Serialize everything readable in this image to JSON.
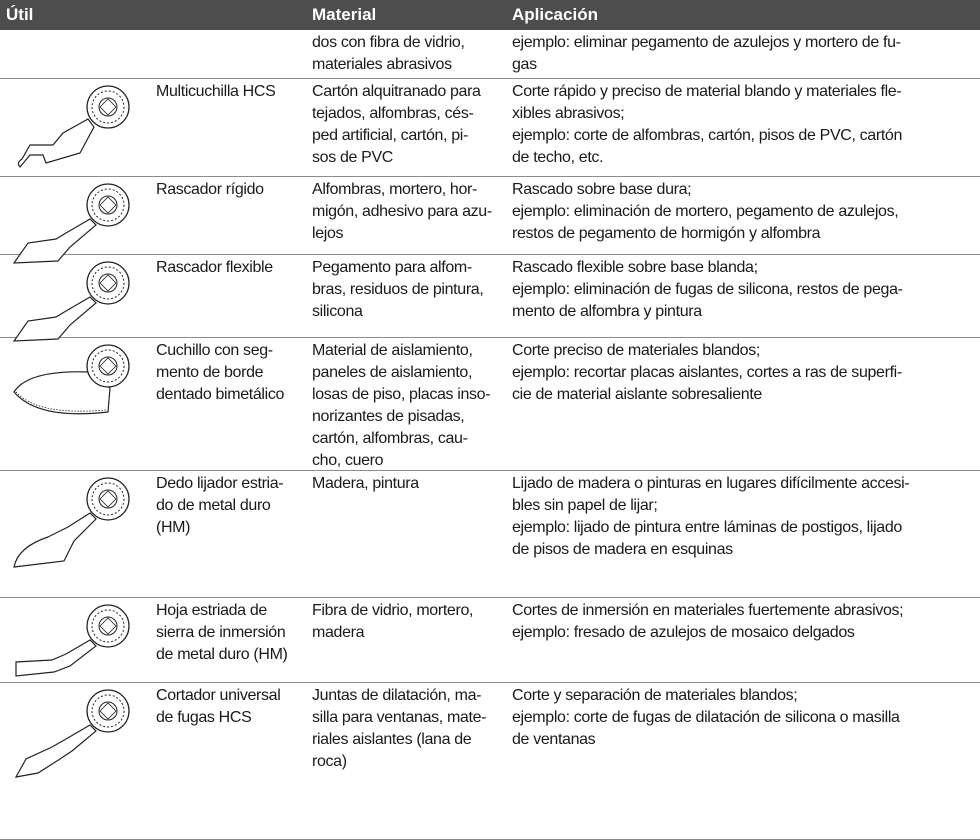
{
  "header": {
    "columns": [
      "Útil",
      "Material",
      "Aplicación"
    ]
  },
  "table": {
    "rows": [
      {
        "tool": [],
        "material": [
          "dos con fibra de vidrio,",
          "materiales abrasivos"
        ],
        "application": [
          "ejemplo: eliminar pegamento de azulejos y mortero de fu-",
          "gas"
        ]
      },
      {
        "tool": [
          "Multicuchilla HCS"
        ],
        "material": [
          "Cartón alquitranado para",
          "tejados, alfombras, cés-",
          "ped artificial, cartón, pi-",
          "sos de PVC"
        ],
        "application": [
          "Corte rápido y preciso de material blando y materiales fle-",
          "xibles abrasivos;",
          "ejemplo: corte de alfombras, cartón, pisos de PVC, cartón",
          "de techo, etc."
        ]
      },
      {
        "tool": [
          "Rascador rígido"
        ],
        "material": [
          "Alfombras, mortero, hor-",
          "migón, adhesivo para azu-",
          "lejos"
        ],
        "application": [
          "Rascado sobre base dura;",
          "ejemplo: eliminación de mortero, pegamento de azulejos,",
          "restos de pegamento de hormigón y alfombra"
        ]
      },
      {
        "tool": [
          "Rascador flexible"
        ],
        "material": [
          "Pegamento para alfom-",
          "bras, residuos de pintura,",
          "silicona"
        ],
        "application": [
          "Rascado flexible sobre base blanda;",
          "ejemplo: eliminación de fugas de silicona, restos de pega-",
          "mento de alfombra y pintura"
        ]
      },
      {
        "tool": [
          "Cuchillo con seg-",
          "mento de borde",
          "dentado bimetálico"
        ],
        "material": [
          "Material de aislamiento,",
          "paneles de aislamiento,",
          "losas de piso, placas inso-",
          "norizantes de pisadas,",
          "cartón, alfombras, cau-",
          "cho, cuero"
        ],
        "application": [
          "Corte preciso de materiales blandos;",
          "ejemplo: recortar placas aislantes, cortes a ras de superfi-",
          "cie de material aislante sobresaliente"
        ]
      },
      {
        "tool": [
          "Dedo lijador estria-",
          "do de metal duro",
          "(HM)"
        ],
        "material": [
          "Madera, pintura"
        ],
        "application": [
          "Lijado de madera o pinturas en lugares difícilmente accesi-",
          "bles sin papel de lijar;",
          "ejemplo: lijado de pintura entre láminas de postigos, lijado",
          "de pisos de madera en esquinas"
        ]
      },
      {
        "tool": [
          "Hoja estriada de",
          "sierra de inmersión",
          "de metal duro (HM)"
        ],
        "material": [
          "Fibra de vidrio, mortero,",
          "madera"
        ],
        "application": [
          "Cortes de inmersión en materiales fuertemente abrasivos;",
          "ejemplo: fresado de azulejos de mosaico delgados"
        ]
      },
      {
        "tool": [
          "Cortador universal",
          "de fugas HCS"
        ],
        "material": [
          "Juntas de dilatación, ma-",
          "silla para ventanas, mate-",
          "riales aislantes (lana de",
          "roca)"
        ],
        "application": [
          "Corte y separación de materiales blandos;",
          "ejemplo: corte de fugas de dilatación de silicona o masilla",
          "de ventanas"
        ]
      }
    ]
  }
}
